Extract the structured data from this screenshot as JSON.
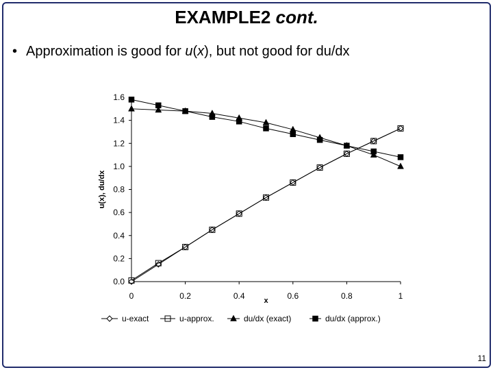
{
  "slide": {
    "title_main": "EXAMPLE2 ",
    "title_em": "cont.",
    "bullet_symbol": "•",
    "bullet_part1": "Approximation is good for ",
    "bullet_u": "u",
    "bullet_paren_open": "(",
    "bullet_x": "x",
    "bullet_part2": "), but not good for du/dx",
    "page_number": "11"
  },
  "chart_data": {
    "type": "line",
    "xlabel": "x",
    "ylabel": "u(x), du/dx",
    "xlim": [
      0,
      1
    ],
    "ylim": [
      0,
      1.6
    ],
    "x_ticks": [
      "0",
      "0.2",
      "0.4",
      "0.6",
      "0.8",
      "1"
    ],
    "y_ticks": [
      "0.0",
      "0.2",
      "0.4",
      "0.6",
      "0.8",
      "1.0",
      "1.2",
      "1.4",
      "1.6"
    ],
    "grid": false,
    "legend_position": "bottom",
    "series": [
      {
        "name": "u-exact",
        "marker": "diamond-open",
        "color": "#000000",
        "x": [
          0,
          0.1,
          0.2,
          0.3,
          0.4,
          0.5,
          0.6,
          0.7,
          0.8,
          0.9,
          1.0
        ],
        "values": [
          0,
          0.15,
          0.3,
          0.45,
          0.59,
          0.73,
          0.86,
          0.99,
          1.11,
          1.22,
          1.33
        ]
      },
      {
        "name": "u-approx.",
        "marker": "square-open",
        "color": "#000000",
        "x": [
          0,
          0.1,
          0.2,
          0.3,
          0.4,
          0.5,
          0.6,
          0.7,
          0.8,
          0.9,
          1.0
        ],
        "values": [
          0.01,
          0.16,
          0.3,
          0.45,
          0.59,
          0.73,
          0.86,
          0.99,
          1.11,
          1.22,
          1.33
        ]
      },
      {
        "name": "du/dx (exact)",
        "marker": "triangle-filled",
        "color": "#000000",
        "x": [
          0,
          0.1,
          0.2,
          0.3,
          0.4,
          0.5,
          0.6,
          0.7,
          0.8,
          0.9,
          1.0
        ],
        "values": [
          1.5,
          1.49,
          1.48,
          1.46,
          1.42,
          1.38,
          1.32,
          1.25,
          1.18,
          1.1,
          1.0
        ]
      },
      {
        "name": "du/dx (approx.)",
        "marker": "square-filled",
        "color": "#000000",
        "x": [
          0,
          0.1,
          0.2,
          0.3,
          0.4,
          0.5,
          0.6,
          0.7,
          0.8,
          0.9,
          1.0
        ],
        "values": [
          1.58,
          1.53,
          1.48,
          1.43,
          1.39,
          1.33,
          1.28,
          1.23,
          1.18,
          1.13,
          1.08
        ]
      }
    ]
  }
}
